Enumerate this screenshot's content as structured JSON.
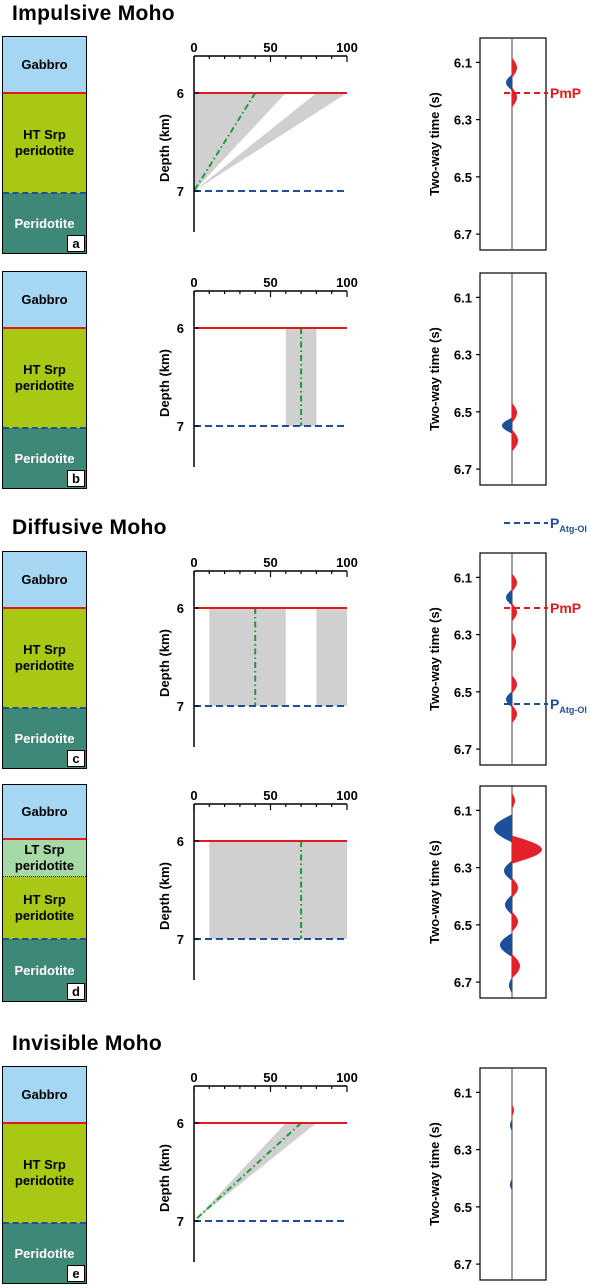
{
  "sections": [
    {
      "title": "Impulsive Moho"
    },
    {
      "title": "Diffusive Moho"
    },
    {
      "title": "Invisible Moho"
    }
  ],
  "colors": {
    "gabbro": "#a5d7f3",
    "ht_srp": "#a8c814",
    "lt_srp": "#a7d9a6",
    "peridotite": "#3e8877",
    "moho_red": "#e31a1c",
    "atg_blue": "#1f4f99",
    "shade": "#d0d0d0",
    "green_dash": "#1a9e3a",
    "wave_red": "#e2212a",
    "wave_blue": "#1c4f9c"
  },
  "axes": {
    "x_ticks": [
      "0",
      "50",
      "100"
    ],
    "depth_label": "Depth (km)",
    "depth_ticks": [
      "6",
      "7"
    ],
    "time_label": "Two-way time (s)",
    "time_ticks": [
      "6.1",
      "6.3",
      "6.5",
      "6.7"
    ]
  },
  "panels": [
    {
      "label": "a",
      "layers": [
        {
          "name": "Gabbro",
          "color": "gabbro"
        },
        {
          "name": "HT Srp\nperidotite",
          "color": "ht_srp"
        },
        {
          "name": "Peridotite",
          "color": "peridotite"
        }
      ],
      "picks": [
        {
          "text": "PmP",
          "sub": "",
          "color": "moho_red"
        }
      ]
    },
    {
      "label": "b",
      "layers": [
        {
          "name": "Gabbro",
          "color": "gabbro"
        },
        {
          "name": "HT Srp\nperidotite",
          "color": "ht_srp"
        },
        {
          "name": "Peridotite",
          "color": "peridotite"
        }
      ],
      "picks": [
        {
          "text": "P",
          "sub": "Atg-Ol",
          "color": "atg_blue"
        }
      ]
    },
    {
      "label": "c",
      "layers": [
        {
          "name": "Gabbro",
          "color": "gabbro"
        },
        {
          "name": "HT Srp\nperidotite",
          "color": "ht_srp"
        },
        {
          "name": "Peridotite",
          "color": "peridotite"
        }
      ],
      "picks": [
        {
          "text": "PmP",
          "sub": "",
          "color": "moho_red"
        },
        {
          "text": "P",
          "sub": "Atg-Ol",
          "color": "atg_blue"
        }
      ]
    },
    {
      "label": "d",
      "layers": [
        {
          "name": "Gabbro",
          "color": "gabbro"
        },
        {
          "name": "LT Srp\nperidotite",
          "color": "lt_srp"
        },
        {
          "name": "HT Srp\nperidotite",
          "color": "ht_srp"
        },
        {
          "name": "Peridotite",
          "color": "peridotite"
        }
      ],
      "picks": []
    },
    {
      "label": "e",
      "layers": [
        {
          "name": "Gabbro",
          "color": "gabbro"
        },
        {
          "name": "HT Srp\nperidotite",
          "color": "ht_srp"
        },
        {
          "name": "Peridotite",
          "color": "peridotite"
        }
      ],
      "picks": []
    }
  ]
}
